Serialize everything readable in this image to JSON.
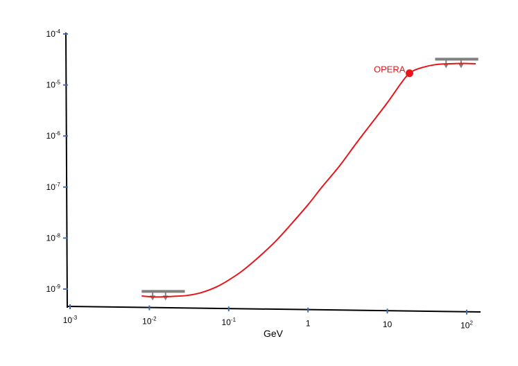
{
  "chart_data": {
    "type": "line",
    "title": "",
    "xlabel": "GeV",
    "ylabel": "",
    "x_scale": "log",
    "y_scale": "log",
    "xlim": [
      0.001,
      150
    ],
    "ylim": [
      1e-09,
      0.0001
    ],
    "grid": false,
    "x_ticks": [
      {
        "value": 0.001,
        "base": "10",
        "exp": "-3"
      },
      {
        "value": 0.01,
        "base": "10",
        "exp": "-2"
      },
      {
        "value": 0.1,
        "base": "10",
        "exp": "-1"
      },
      {
        "value": 1,
        "base": "1",
        "exp": ""
      },
      {
        "value": 10,
        "base": "10",
        "exp": ""
      },
      {
        "value": 100,
        "base": "10",
        "exp": "2"
      }
    ],
    "y_ticks": [
      {
        "value": 0.0001,
        "base": "10",
        "exp": "-4"
      },
      {
        "value": 1e-05,
        "base": "10",
        "exp": "-5"
      },
      {
        "value": 1e-06,
        "base": "10",
        "exp": "-6"
      },
      {
        "value": 1e-07,
        "base": "10",
        "exp": "-7"
      },
      {
        "value": 1e-08,
        "base": "10",
        "exp": "-8"
      },
      {
        "value": 1e-09,
        "base": "10",
        "exp": "-9"
      }
    ],
    "series": [
      {
        "color": "#e8141a",
        "x": [
          0.008,
          0.012,
          0.02,
          0.03,
          0.045,
          0.07,
          0.1,
          0.15,
          0.25,
          0.4,
          0.6,
          1,
          1.5,
          2.5,
          4,
          6,
          10,
          15,
          19,
          25,
          40,
          60,
          90,
          130
        ],
        "y": [
          7.3e-10,
          7e-10,
          7.2e-10,
          7.5e-10,
          8.5e-10,
          1.1e-09,
          1.5e-09,
          2.3e-09,
          4.5e-09,
          9e-09,
          1.8e-08,
          4.5e-08,
          1e-07,
          2.6e-07,
          7e-07,
          1.6e-06,
          4.5e-06,
          1.1e-05,
          1.7e-05,
          2.1e-05,
          2.5e-05,
          2.6e-05,
          2.65e-05,
          2.6e-05
        ]
      }
    ],
    "points": [
      {
        "label": "OPERA",
        "x": 19,
        "y": 1.7e-05,
        "color": "#e8141a"
      }
    ],
    "upper_limits": [
      {
        "x_range": [
          0.008,
          0.028
        ],
        "y": 9e-10,
        "arrow_x": [
          0.011,
          0.016
        ],
        "color": "#808080"
      },
      {
        "x_range": [
          40,
          140
        ],
        "y": 3.2e-05,
        "arrow_x": [
          55,
          85
        ],
        "color": "#808080"
      }
    ],
    "colors": {
      "curve": "#e8141a",
      "limits": "#808080",
      "ticks": "#3f6fb4",
      "axes": "#000000"
    }
  }
}
